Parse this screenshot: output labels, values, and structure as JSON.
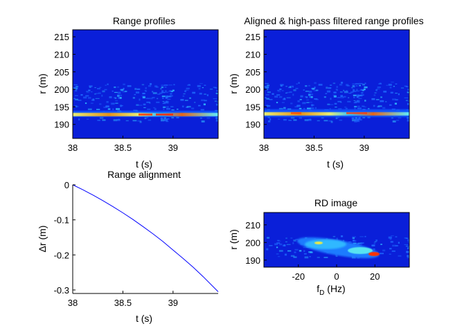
{
  "colors": {
    "background": "#ffffff",
    "axis": "#000000",
    "line": "#0000ff",
    "colormap": [
      "#00008f",
      "#0000ff",
      "#00ffff",
      "#ffff00",
      "#ff0000",
      "#800000"
    ]
  },
  "chart_data": [
    {
      "type": "heatmap",
      "title": "Range profiles",
      "xlabel": "t (s)",
      "ylabel": "r (m)",
      "xlim": [
        38,
        39.45
      ],
      "ylim": [
        186,
        217
      ],
      "xticks": [
        38,
        38.5,
        39
      ],
      "xtick_labels": [
        "38",
        "38.5",
        "39"
      ],
      "yticks": [
        190,
        195,
        200,
        205,
        210,
        215
      ],
      "ytick_labels": [
        "190",
        "195",
        "200",
        "205",
        "210",
        "215"
      ],
      "features": [
        {
          "r": 193.5,
          "t_range": [
            38,
            39.45
          ],
          "level": 0.75,
          "note": "strong scatterer track"
        },
        {
          "r": 196.5,
          "t_range": [
            38,
            39.45
          ],
          "level": 0.35
        },
        {
          "r": 199.5,
          "t_range": [
            38,
            39.45
          ],
          "level": 0.2
        }
      ]
    },
    {
      "type": "heatmap",
      "title": "Aligned & high-pass filtered range profiles",
      "xlabel": "t (s)",
      "ylabel": "r (m)",
      "xlim": [
        38,
        39.45
      ],
      "ylim": [
        186,
        217
      ],
      "xticks": [
        38,
        38.5,
        39
      ],
      "xtick_labels": [
        "38",
        "38.5",
        "39"
      ],
      "yticks": [
        190,
        195,
        200,
        205,
        210,
        215
      ],
      "ytick_labels": [
        "190",
        "195",
        "200",
        "205",
        "210",
        "215"
      ],
      "features": [
        {
          "r": 193.5,
          "t_range": [
            38,
            39.45
          ],
          "level": 0.75
        },
        {
          "r": 196.5,
          "t_range": [
            38,
            39.45
          ],
          "level": 0.35
        },
        {
          "r": 199.5,
          "t_range": [
            38,
            39.45
          ],
          "level": 0.2
        }
      ]
    },
    {
      "type": "line",
      "title": "Range alignment",
      "xlabel": "t (s)",
      "ylabel": "Δr (m)",
      "xlim": [
        38,
        39.45
      ],
      "ylim": [
        -0.31,
        0
      ],
      "xticks": [
        38,
        38.5,
        39
      ],
      "xtick_labels": [
        "38",
        "38.5",
        "39"
      ],
      "yticks": [
        0,
        -0.1,
        -0.2,
        -0.3
      ],
      "ytick_labels": [
        "0",
        "-0.1",
        "-0.2",
        "-0.3"
      ],
      "series": [
        {
          "x": [
            38.0,
            38.1,
            38.2,
            38.3,
            38.4,
            38.5,
            38.6,
            38.7,
            38.8,
            38.9,
            39.0,
            39.1,
            39.2,
            39.3,
            39.45
          ],
          "y": [
            0.0,
            -0.014,
            -0.029,
            -0.045,
            -0.062,
            -0.08,
            -0.099,
            -0.119,
            -0.14,
            -0.162,
            -0.186,
            -0.21,
            -0.235,
            -0.262,
            -0.305
          ]
        }
      ]
    },
    {
      "type": "heatmap",
      "title": "RD image",
      "xlabel": "f_D (Hz)",
      "ylabel": "r (m)",
      "xlim": [
        -38,
        38
      ],
      "ylim": [
        186,
        217
      ],
      "xticks": [
        -20,
        0,
        20
      ],
      "xtick_labels": [
        "-20",
        "0",
        "20"
      ],
      "yticks": [
        190,
        200,
        210
      ],
      "ytick_labels": [
        "190",
        "200",
        "210"
      ],
      "features": [
        {
          "f": -10,
          "r": 199,
          "level": 0.45
        },
        {
          "f": 5,
          "r": 197,
          "level": 0.5
        },
        {
          "f": 18,
          "r": 194,
          "level": 0.9,
          "note": "peak"
        }
      ]
    }
  ],
  "labels": {
    "p1_title": "Range profiles",
    "p2_title": "Aligned & high-pass filtered range profiles",
    "p3_title": "Range alignment",
    "p4_title": "RD image",
    "t_label": "t (s)",
    "r_label": "r (m)",
    "dr_label": "Δr (m)",
    "fd_main": "f",
    "fd_sub": "D",
    "fd_unit": " (Hz)"
  }
}
